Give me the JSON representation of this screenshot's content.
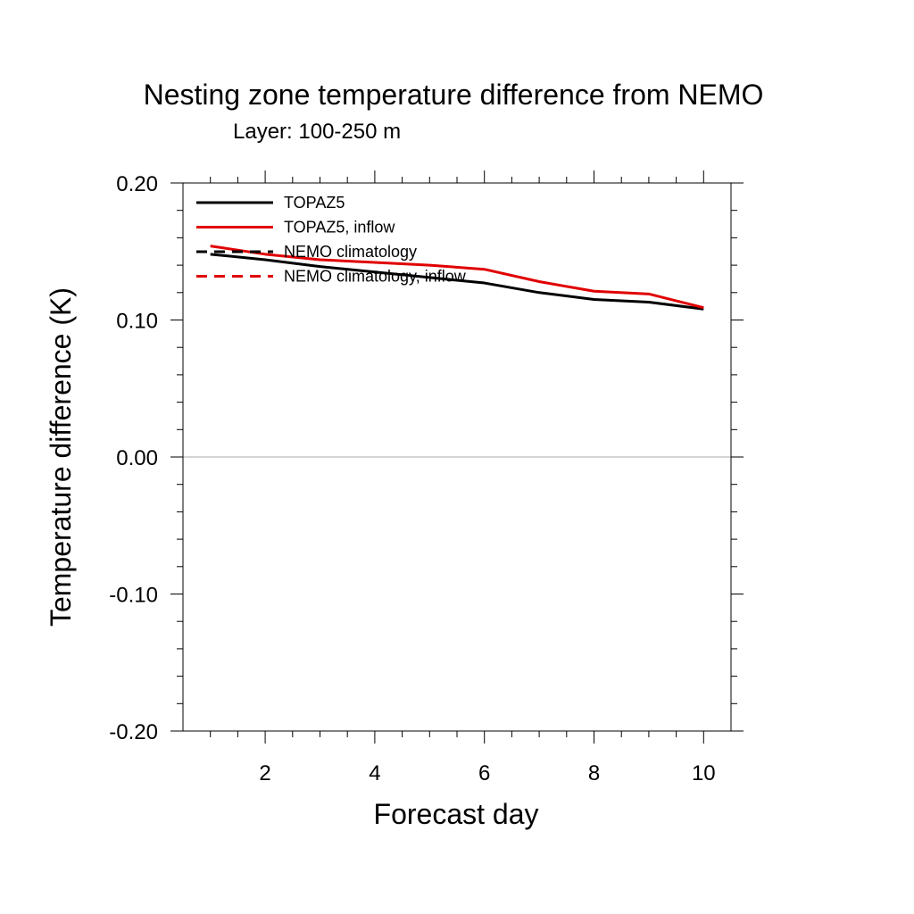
{
  "chart_data": {
    "type": "line",
    "title": "Nesting zone temperature difference from NEMO",
    "subtitle": "Layer: 100-250 m",
    "xlabel": "Forecast day",
    "ylabel": "Temperature difference (K)",
    "xlim": [
      0.5,
      10.5
    ],
    "ylim": [
      -0.2,
      0.2
    ],
    "x_ticks": [
      2,
      4,
      6,
      8,
      10
    ],
    "x_tick_labels": [
      "2",
      "4",
      "6",
      "8",
      "10"
    ],
    "y_ticks": [
      -0.2,
      -0.1,
      0.0,
      0.1,
      0.2
    ],
    "y_tick_labels": [
      "-0.20",
      "-0.10",
      "0.00",
      "0.10",
      "0.20"
    ],
    "zero_line": true,
    "grid": false,
    "legend_position": "top-left",
    "legend": [
      {
        "label": "TOPAZ5",
        "color": "#000000",
        "dash": "solid"
      },
      {
        "label": "TOPAZ5, inflow",
        "color": "#e00000",
        "dash": "solid"
      },
      {
        "label": "NEMO climatology",
        "color": "#000000",
        "dash": "dashed"
      },
      {
        "label": "NEMO climatology, inflow",
        "color": "#e00000",
        "dash": "dashed"
      }
    ],
    "x": [
      1,
      2,
      3,
      4,
      5,
      6,
      7,
      8,
      9,
      10
    ],
    "series": [
      {
        "name": "TOPAZ5",
        "color": "#000000",
        "dash": "solid",
        "values": [
          0.148,
          0.144,
          0.139,
          0.135,
          0.131,
          0.127,
          0.12,
          0.115,
          0.113,
          0.108
        ]
      },
      {
        "name": "TOPAZ5, inflow",
        "color": "#e00000",
        "dash": "solid",
        "values": [
          0.154,
          0.148,
          0.144,
          0.142,
          0.14,
          0.137,
          0.128,
          0.121,
          0.119,
          0.109
        ]
      }
    ]
  }
}
